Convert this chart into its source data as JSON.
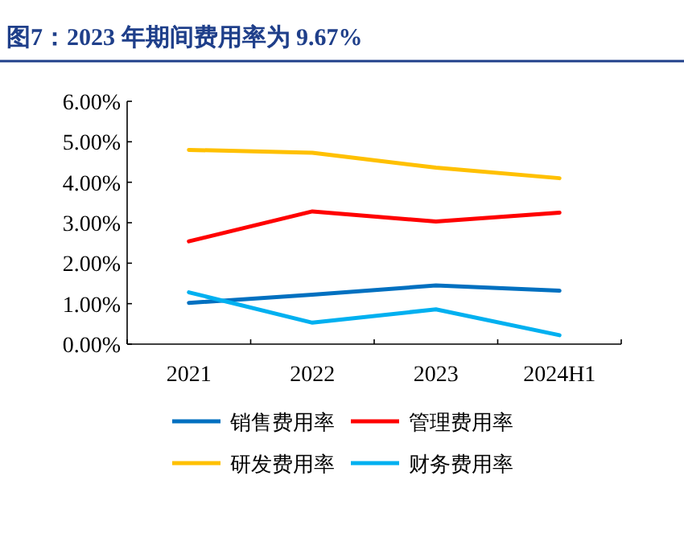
{
  "chart_data": {
    "type": "line",
    "title": "图7：2023 年期间费用率为 9.67%",
    "categories": [
      "2021",
      "2022",
      "2023",
      "2024H1"
    ],
    "series": [
      {
        "name": "销售费用率",
        "color": "#0070c0",
        "values": [
          1.02,
          1.22,
          1.45,
          1.32
        ]
      },
      {
        "name": "管理费用率",
        "color": "#ff0000",
        "values": [
          2.54,
          3.28,
          3.03,
          3.25
        ]
      },
      {
        "name": "研发费用率",
        "color": "#ffc000",
        "values": [
          4.8,
          4.73,
          4.36,
          4.1
        ]
      },
      {
        "name": "财务费用率",
        "color": "#00b0f0",
        "values": [
          1.28,
          0.53,
          0.86,
          0.22
        ]
      }
    ],
    "ylim": [
      0,
      6
    ],
    "yticks": [
      {
        "value": 0,
        "label": "0.00%"
      },
      {
        "value": 1,
        "label": "1.00%"
      },
      {
        "value": 2,
        "label": "2.00%"
      },
      {
        "value": 3,
        "label": "3.00%"
      },
      {
        "value": 4,
        "label": "4.00%"
      },
      {
        "value": 5,
        "label": "5.00%"
      },
      {
        "value": 6,
        "label": "6.00%"
      }
    ],
    "legend": "bottom"
  }
}
